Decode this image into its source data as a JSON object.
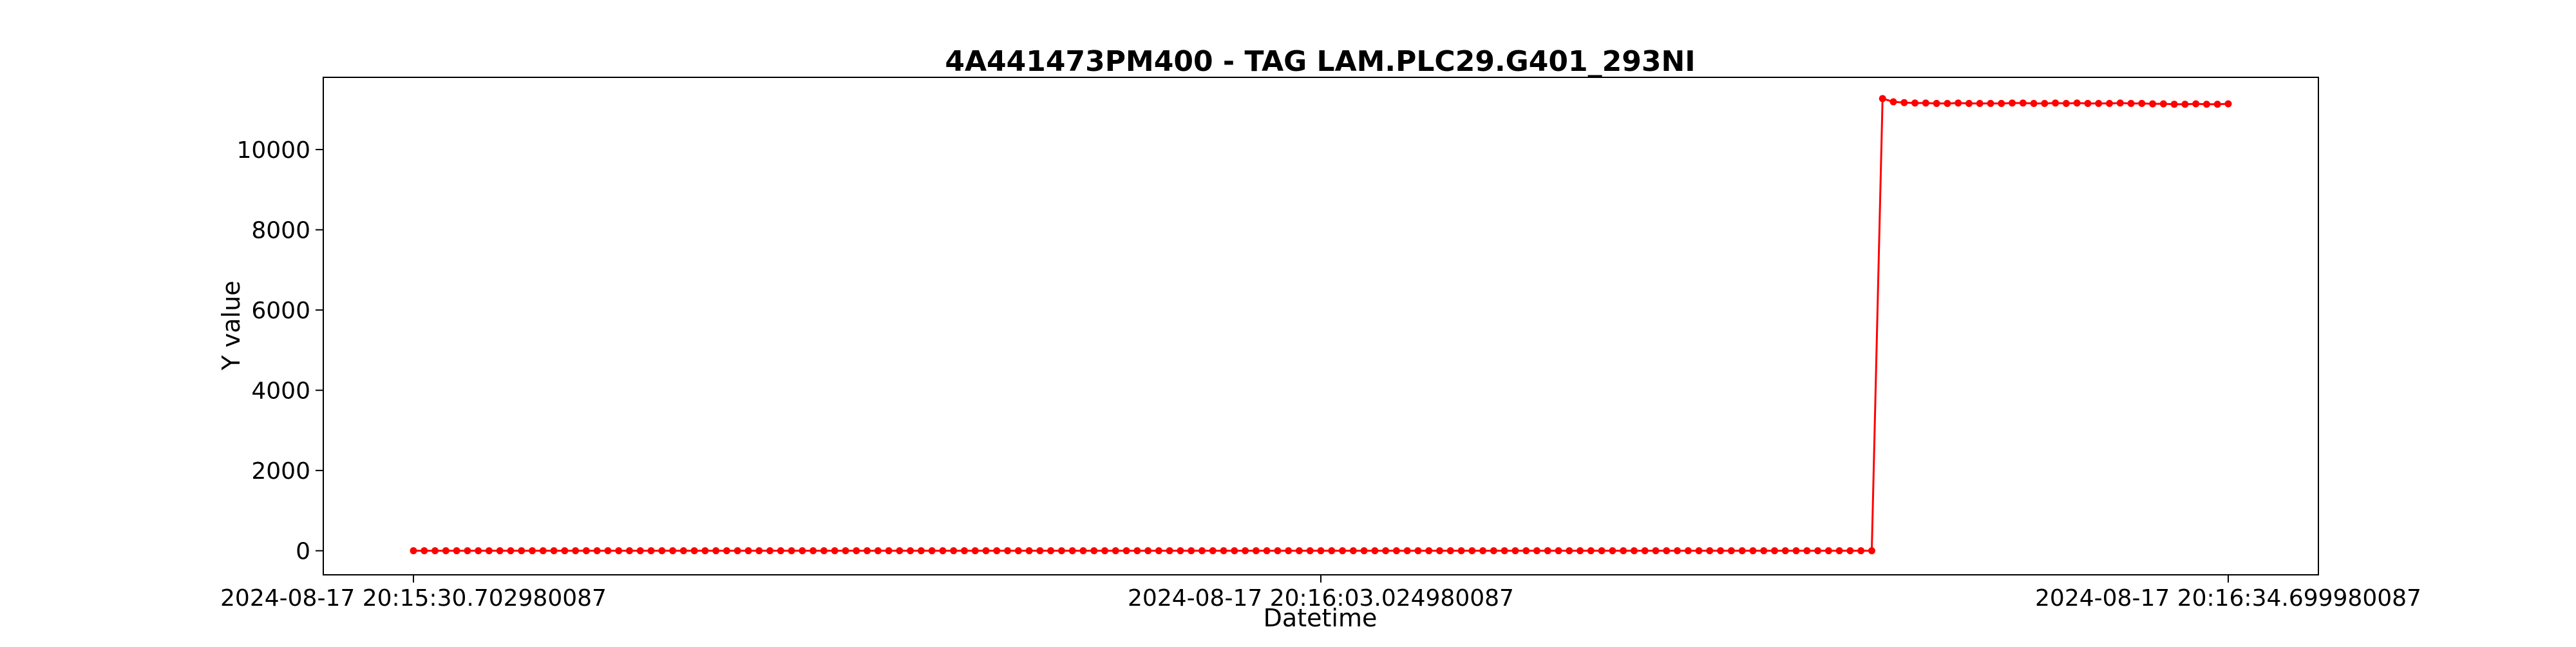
{
  "chart_data": {
    "type": "line",
    "title": "4A441473PM400 - TAG LAM.PLC29.G401_293NI",
    "xlabel": "Datetime",
    "ylabel": "Y value",
    "x_ticks": [
      "2024-08-17 20:15:30.702980087",
      "2024-08-17 20:16:03.024980087",
      "2024-08-17 20:16:34.699980087"
    ],
    "y_ticks": [
      0,
      2000,
      4000,
      6000,
      8000,
      10000
    ],
    "ylim": [
      -600,
      11800
    ],
    "grid": false,
    "marker": "circle",
    "series_color": "#ff0000",
    "series": [
      {
        "values": [
          0,
          0,
          0,
          0,
          0,
          0,
          0,
          0,
          0,
          0,
          0,
          0,
          0,
          0,
          0,
          0,
          0,
          0,
          0,
          0,
          0,
          0,
          0,
          0,
          0,
          0,
          0,
          0,
          0,
          0,
          0,
          0,
          0,
          0,
          0,
          0,
          0,
          0,
          0,
          0,
          0,
          0,
          0,
          0,
          0,
          0,
          0,
          0,
          0,
          0,
          0,
          0,
          0,
          0,
          0,
          0,
          0,
          0,
          0,
          0,
          0,
          0,
          0,
          0,
          0,
          0,
          0,
          0,
          0,
          0,
          0,
          0,
          0,
          0,
          0,
          0,
          0,
          0,
          0,
          0,
          0,
          0,
          0,
          0,
          0,
          0,
          0,
          0,
          0,
          0,
          0,
          0,
          0,
          0,
          0,
          0,
          0,
          0,
          0,
          0,
          0,
          0,
          0,
          0,
          0,
          0,
          0,
          0,
          0,
          0,
          0,
          0,
          0,
          0,
          0,
          0,
          0,
          0,
          0,
          0,
          0,
          0,
          0,
          0,
          0,
          0,
          0,
          0,
          0,
          0,
          0,
          0,
          0,
          0,
          0,
          0,
          11270,
          11190,
          11170,
          11160,
          11160,
          11150,
          11150,
          11160,
          11150,
          11150,
          11150,
          11150,
          11160,
          11160,
          11150,
          11150,
          11160,
          11150,
          11160,
          11150,
          11150,
          11150,
          11160,
          11150,
          11150,
          11140,
          11140,
          11130,
          11130,
          11140,
          11130,
          11130,
          11140
        ]
      }
    ]
  }
}
